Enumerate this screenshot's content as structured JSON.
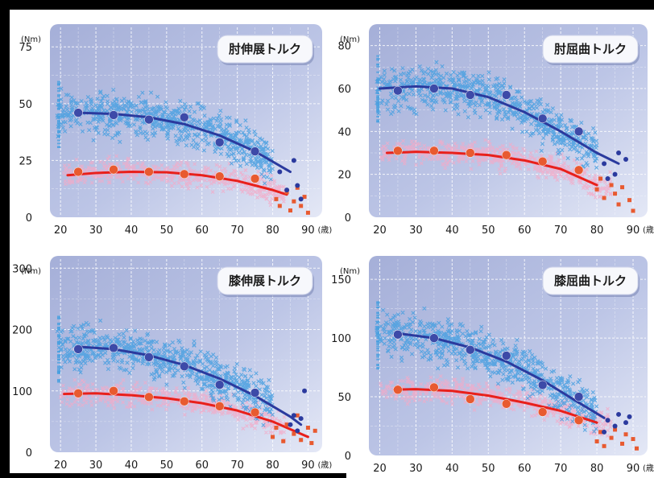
{
  "colors": {
    "male_scatter": "#4aa0e0",
    "female_scatter": "#f4a9c7",
    "male_line": "#2b3a9e",
    "female_line": "#e8201b",
    "male_mean": "#3d4aa8",
    "female_mean": "#e85a30",
    "grid": "#ffffff"
  },
  "chart_data": [
    {
      "type": "scatter",
      "title": "肘伸展トルク",
      "unit_label": "(Nm)",
      "age_unit": "(歳)",
      "x_ticks": [
        20,
        30,
        40,
        50,
        60,
        70,
        80,
        90
      ],
      "y_ticks": [
        0,
        25,
        50,
        75
      ],
      "xlim": [
        17,
        94
      ],
      "ylim": [
        0,
        85
      ],
      "grid": true,
      "series": [
        {
          "role": "male_mean",
          "x": [
            25,
            35,
            45,
            55,
            65,
            75
          ],
          "y": [
            46,
            45,
            43,
            44,
            33,
            29
          ]
        },
        {
          "role": "female_mean",
          "x": [
            25,
            35,
            45,
            55,
            65,
            75
          ],
          "y": [
            20,
            21,
            20,
            19,
            18,
            17
          ]
        },
        {
          "role": "male_fit",
          "x": [
            25,
            35,
            45,
            55,
            65,
            75,
            85
          ],
          "y": [
            46,
            45.5,
            44,
            41,
            36,
            29,
            20
          ]
        },
        {
          "role": "female_fit",
          "x": [
            22,
            30,
            40,
            50,
            60,
            70,
            80,
            84
          ],
          "y": [
            18.5,
            19.5,
            20,
            19.8,
            18.5,
            16,
            12,
            10
          ]
        },
        {
          "role": "male_elderly",
          "x": [
            82,
            84,
            86,
            87,
            88
          ],
          "y": [
            20,
            12,
            25,
            14,
            8
          ]
        },
        {
          "role": "female_elderly",
          "x": [
            81,
            82,
            84,
            85,
            86,
            87,
            88,
            89,
            90
          ],
          "y": [
            8,
            5,
            11,
            3,
            7,
            13,
            5,
            9,
            2
          ]
        }
      ]
    },
    {
      "type": "scatter",
      "title": "肘屈曲トルク",
      "unit_label": "(Nm)",
      "age_unit": "(歳)",
      "x_ticks": [
        20,
        30,
        40,
        50,
        60,
        70,
        80,
        90
      ],
      "y_ticks": [
        0,
        20,
        40,
        60,
        80
      ],
      "xlim": [
        17,
        94
      ],
      "ylim": [
        0,
        90
      ],
      "grid": true,
      "series": [
        {
          "role": "male_mean",
          "x": [
            25,
            35,
            45,
            55,
            65,
            75
          ],
          "y": [
            59,
            60,
            57,
            57,
            46,
            40
          ]
        },
        {
          "role": "female_mean",
          "x": [
            25,
            35,
            45,
            55,
            65,
            75
          ],
          "y": [
            31,
            31,
            30,
            29,
            26,
            22
          ]
        },
        {
          "role": "male_fit",
          "x": [
            20,
            30,
            40,
            50,
            60,
            70,
            80,
            86
          ],
          "y": [
            60,
            61,
            60,
            56,
            49,
            40,
            30,
            25
          ]
        },
        {
          "role": "female_fit",
          "x": [
            22,
            30,
            40,
            50,
            60,
            70,
            80
          ],
          "y": [
            30,
            30.5,
            30,
            29,
            26.5,
            22.5,
            15
          ]
        },
        {
          "role": "male_elderly",
          "x": [
            82,
            83,
            85,
            86,
            88
          ],
          "y": [
            25,
            18,
            20,
            30,
            27
          ]
        },
        {
          "role": "female_elderly",
          "x": [
            80,
            81,
            82,
            84,
            85,
            86,
            87,
            89,
            90
          ],
          "y": [
            13,
            18,
            9,
            15,
            11,
            6,
            14,
            8,
            3
          ]
        }
      ]
    },
    {
      "type": "scatter",
      "title": "膝伸展トルク",
      "unit_label": "(Nm)",
      "age_unit": "(歳)",
      "x_ticks": [
        20,
        30,
        40,
        50,
        60,
        70,
        80,
        90
      ],
      "y_ticks": [
        0,
        100,
        200,
        300
      ],
      "xlim": [
        17,
        94
      ],
      "ylim": [
        0,
        320
      ],
      "grid": true,
      "series": [
        {
          "role": "male_mean",
          "x": [
            25,
            35,
            45,
            55,
            65,
            75
          ],
          "y": [
            168,
            170,
            155,
            140,
            110,
            97
          ]
        },
        {
          "role": "female_mean",
          "x": [
            25,
            35,
            45,
            55,
            65,
            75
          ],
          "y": [
            96,
            100,
            90,
            83,
            75,
            65
          ]
        },
        {
          "role": "male_fit",
          "x": [
            25,
            35,
            45,
            55,
            65,
            75,
            85,
            88
          ],
          "y": [
            172,
            168,
            158,
            142,
            120,
            92,
            58,
            45
          ]
        },
        {
          "role": "female_fit",
          "x": [
            21,
            30,
            40,
            50,
            60,
            70,
            80,
            90
          ],
          "y": [
            95,
            96,
            93,
            88,
            80,
            68,
            50,
            25
          ]
        },
        {
          "role": "male_elderly",
          "x": [
            85,
            86,
            87,
            88,
            89
          ],
          "y": [
            45,
            60,
            35,
            55,
            100
          ]
        },
        {
          "role": "female_elderly",
          "x": [
            80,
            81,
            83,
            84,
            86,
            87,
            88,
            90,
            91,
            92
          ],
          "y": [
            25,
            40,
            18,
            45,
            30,
            60,
            20,
            40,
            15,
            35
          ]
        }
      ]
    },
    {
      "type": "scatter",
      "title": "膝屈曲トルク",
      "unit_label": "(Nm)",
      "age_unit": "(歳)",
      "x_ticks": [
        20,
        30,
        40,
        50,
        60,
        70,
        80,
        90
      ],
      "y_ticks": [
        0,
        50,
        100,
        150
      ],
      "xlim": [
        17,
        94
      ],
      "ylim": [
        0,
        170
      ],
      "grid": true,
      "series": [
        {
          "role": "male_mean",
          "x": [
            25,
            35,
            45,
            55,
            65,
            75
          ],
          "y": [
            103,
            100,
            90,
            85,
            60,
            50
          ]
        },
        {
          "role": "female_mean",
          "x": [
            25,
            35,
            45,
            55,
            65,
            75
          ],
          "y": [
            56,
            58,
            48,
            44,
            37,
            30
          ]
        },
        {
          "role": "male_fit",
          "x": [
            25,
            35,
            45,
            55,
            65,
            75,
            82
          ],
          "y": [
            104,
            100,
            92,
            80,
            64,
            45,
            32
          ]
        },
        {
          "role": "female_fit",
          "x": [
            24,
            30,
            40,
            50,
            60,
            70,
            80
          ],
          "y": [
            56,
            56.5,
            55,
            51,
            45,
            38,
            28
          ]
        },
        {
          "role": "male_elderly",
          "x": [
            82,
            83,
            85,
            86,
            88,
            89
          ],
          "y": [
            20,
            30,
            25,
            35,
            28,
            33
          ]
        },
        {
          "role": "female_elderly",
          "x": [
            80,
            81,
            82,
            84,
            85,
            87,
            88,
            90,
            91
          ],
          "y": [
            12,
            20,
            8,
            15,
            22,
            10,
            18,
            14,
            6
          ]
        }
      ]
    }
  ]
}
